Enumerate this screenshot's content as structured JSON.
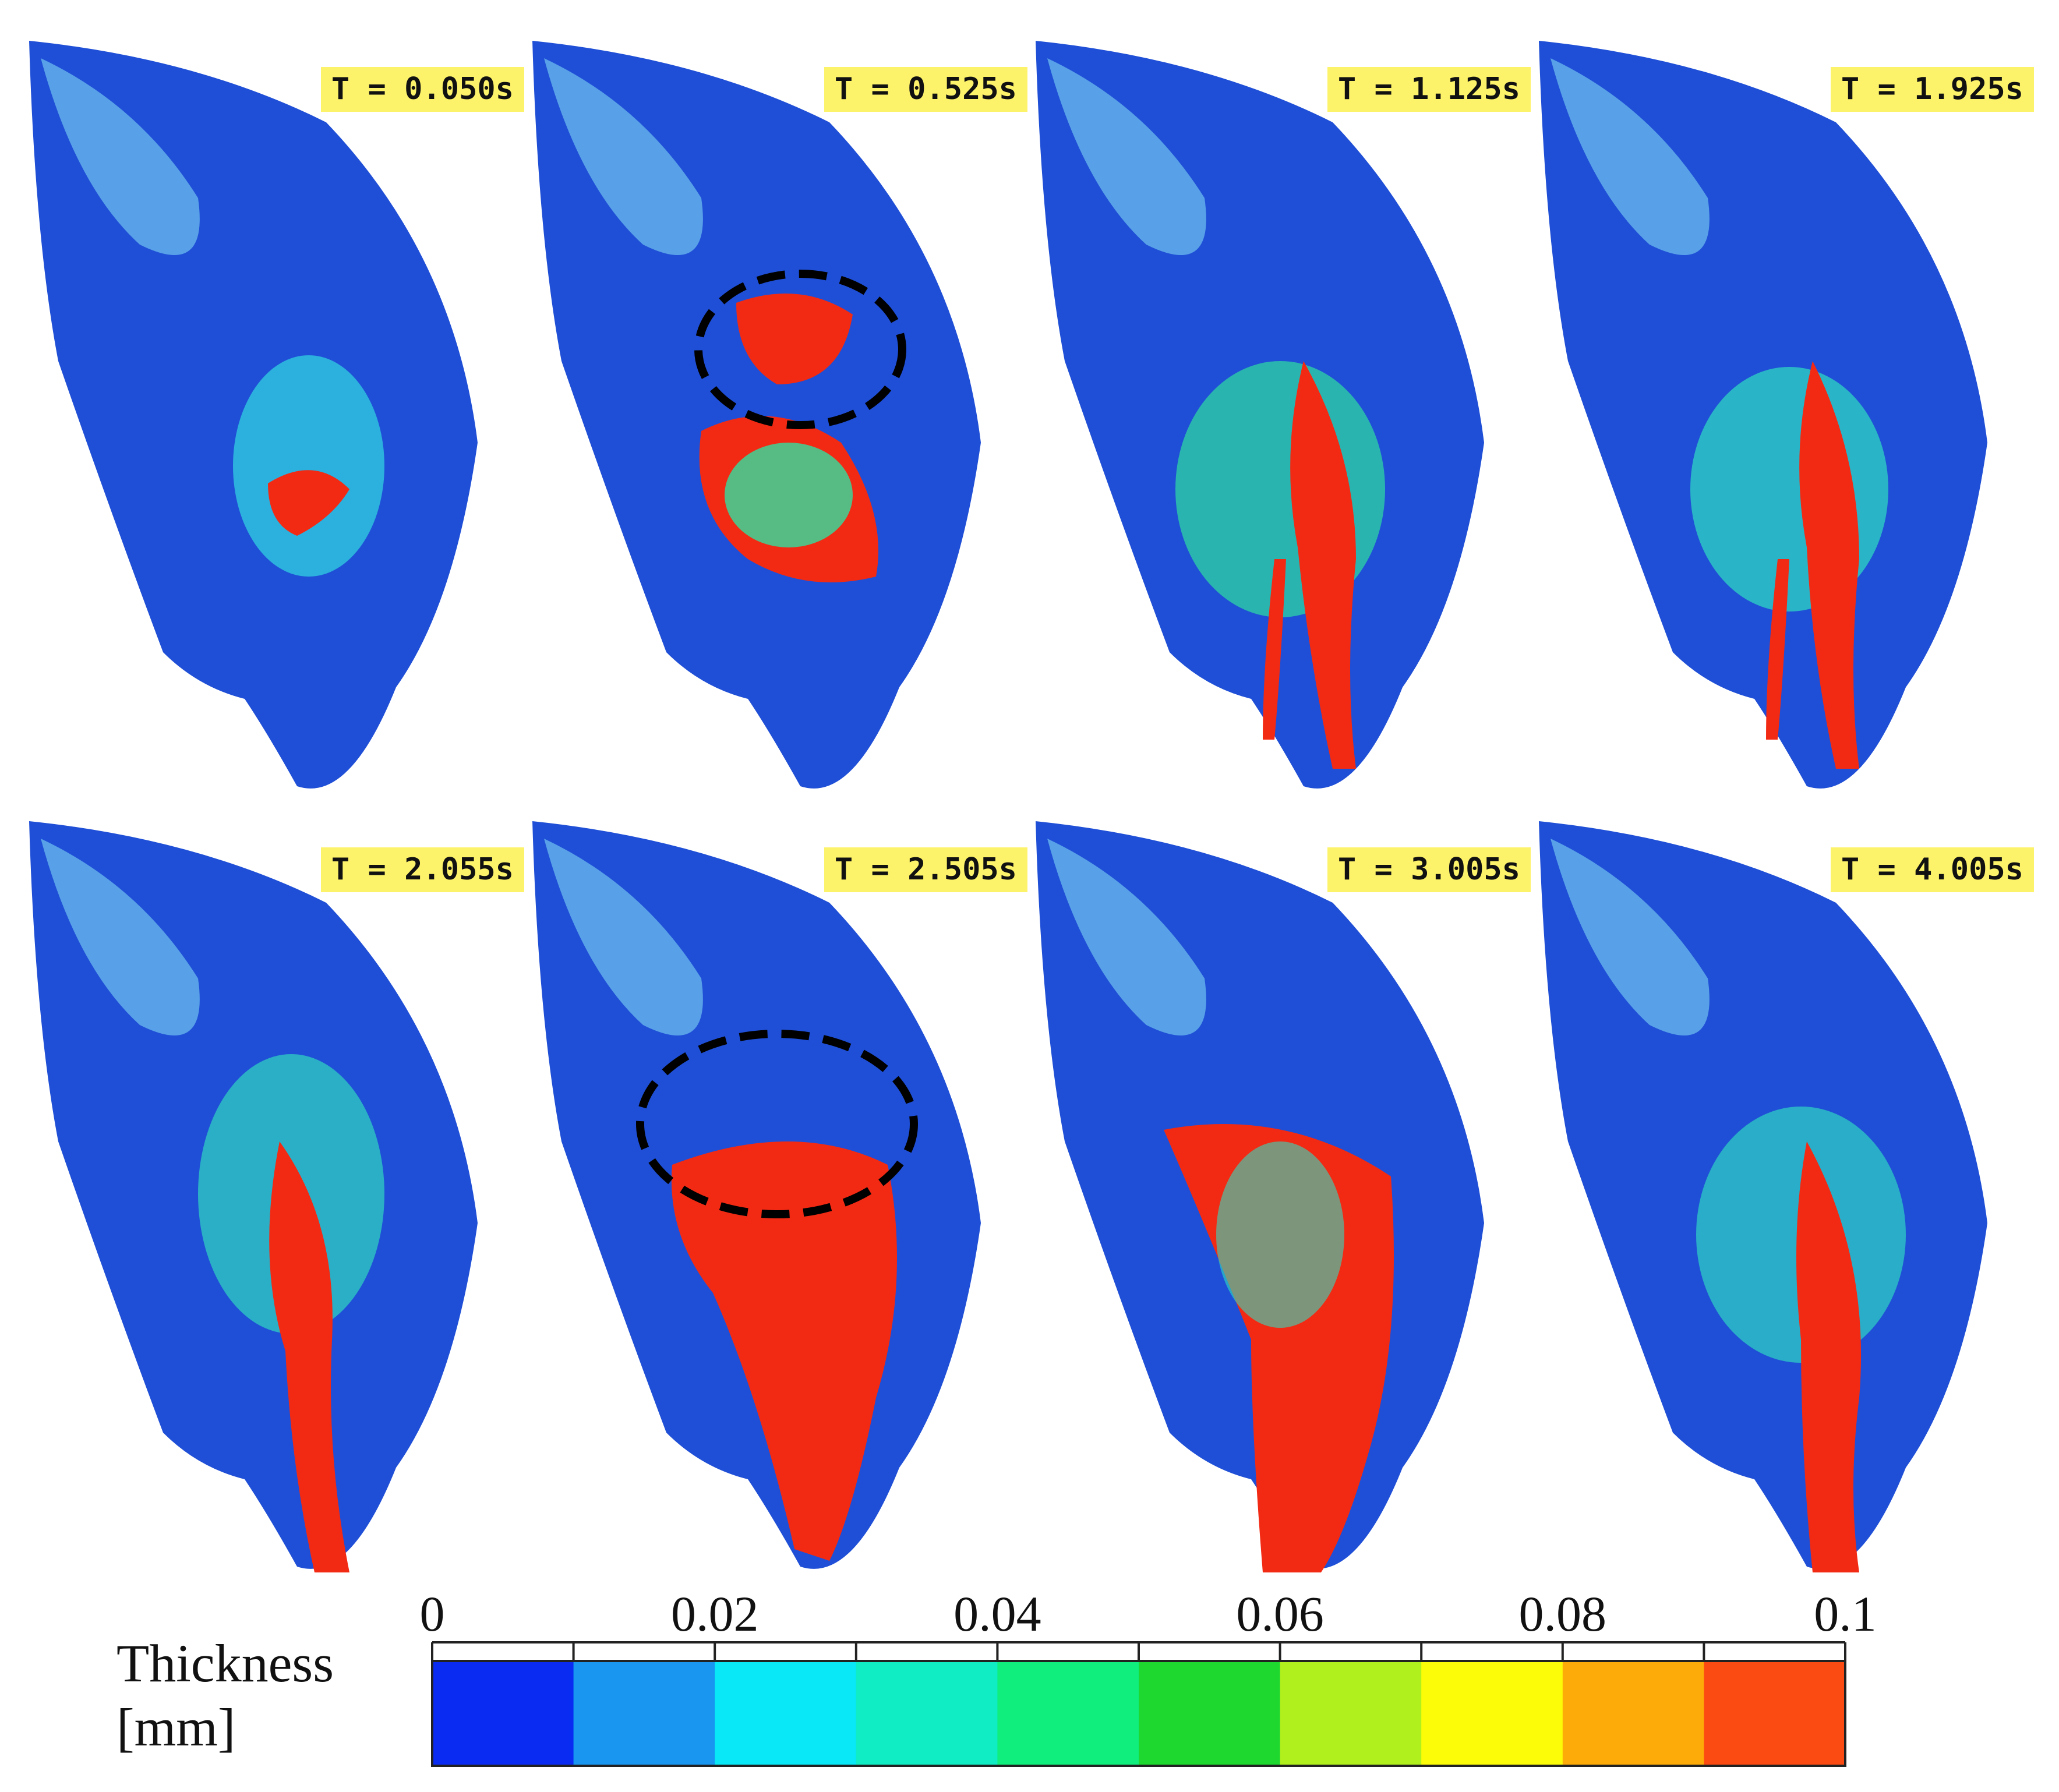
{
  "panels": [
    {
      "time_label": "T = 0.050s"
    },
    {
      "time_label": "T = 0.525s"
    },
    {
      "time_label": "T = 1.125s"
    },
    {
      "time_label": "T = 1.925s"
    },
    {
      "time_label": "T = 2.055s"
    },
    {
      "time_label": "T = 2.505s"
    },
    {
      "time_label": "T = 3.005s"
    },
    {
      "time_label": "T = 4.005s"
    }
  ],
  "legend": {
    "title_line1": "Thickness",
    "title_line2": "[mm]",
    "tick_labels": [
      "0",
      "0.02",
      "0.04",
      "0.06",
      "0.08",
      "0.1"
    ],
    "range": [
      0,
      0.1
    ],
    "colors": [
      "#0a2bf2",
      "#1896f0",
      "#08e8f6",
      "#10ecc4",
      "#10ee7e",
      "#1ed830",
      "#b0f01c",
      "#fdfc08",
      "#fdab08",
      "#fb4b12"
    ]
  },
  "colors": {
    "surface_blue": "#1f4fd6",
    "surface_highlight": "#7fd8f5",
    "film_red": "#f22a14",
    "label_bg": "#fdf36b",
    "marker_circle": "#000000"
  }
}
